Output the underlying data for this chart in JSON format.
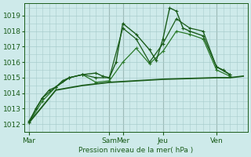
{
  "bg_color": "#ceeaea",
  "grid_color": "#a8cccc",
  "line_color_dark": "#1a5c1a",
  "line_color_mid": "#2a7a2a",
  "line_color_light": "#3a9a3a",
  "ylabel": "Pression niveau de la mer( hPa )",
  "ylim": [
    1011.5,
    1019.8
  ],
  "yticks": [
    1012,
    1013,
    1014,
    1015,
    1016,
    1017,
    1018,
    1019
  ],
  "day_labels": [
    "Mar",
    "Sam",
    "Mer",
    "Jeu",
    "Ven"
  ],
  "day_tick_pos": [
    0,
    72,
    84,
    120,
    168
  ],
  "xlim": [
    -4,
    196
  ],
  "series1_x": [
    0,
    6,
    12,
    18,
    24,
    30,
    36,
    48,
    60,
    66,
    72,
    78,
    84,
    96,
    108,
    114,
    120,
    126,
    132,
    138,
    144,
    156,
    168,
    174,
    180
  ],
  "series1_y": [
    1012.1,
    1013.0,
    1013.7,
    1014.2,
    1014.4,
    1014.8,
    1015.0,
    1015.2,
    1015.3,
    1015.1,
    1015.0,
    1016.0,
    1018.5,
    1017.8,
    1016.8,
    1016.1,
    1017.5,
    1019.5,
    1019.3,
    1018.2,
    1018.0,
    1017.7,
    1015.7,
    1015.5,
    1015.2
  ],
  "series2_x": [
    0,
    12,
    24,
    36,
    48,
    60,
    72,
    84,
    96,
    108,
    120,
    132,
    144,
    156,
    168,
    180
  ],
  "series2_y": [
    1012.2,
    1013.7,
    1014.4,
    1015.0,
    1015.2,
    1015.0,
    1015.0,
    1018.2,
    1017.5,
    1016.0,
    1017.2,
    1018.8,
    1018.2,
    1018.0,
    1015.7,
    1015.2
  ],
  "series3_x": [
    0,
    12,
    24,
    36,
    48,
    60,
    72,
    84,
    96,
    108,
    120,
    132,
    144,
    156,
    168,
    180
  ],
  "series3_y": [
    1012.1,
    1013.5,
    1014.4,
    1015.0,
    1015.2,
    1014.7,
    1014.8,
    1016.0,
    1016.9,
    1015.9,
    1016.7,
    1018.0,
    1017.8,
    1017.5,
    1015.5,
    1015.1
  ],
  "series4_x": [
    0,
    24,
    48,
    72,
    84,
    120,
    168,
    180,
    192
  ],
  "series4_y": [
    1012.1,
    1014.2,
    1014.5,
    1014.7,
    1014.75,
    1014.9,
    1015.0,
    1015.0,
    1015.1
  ]
}
